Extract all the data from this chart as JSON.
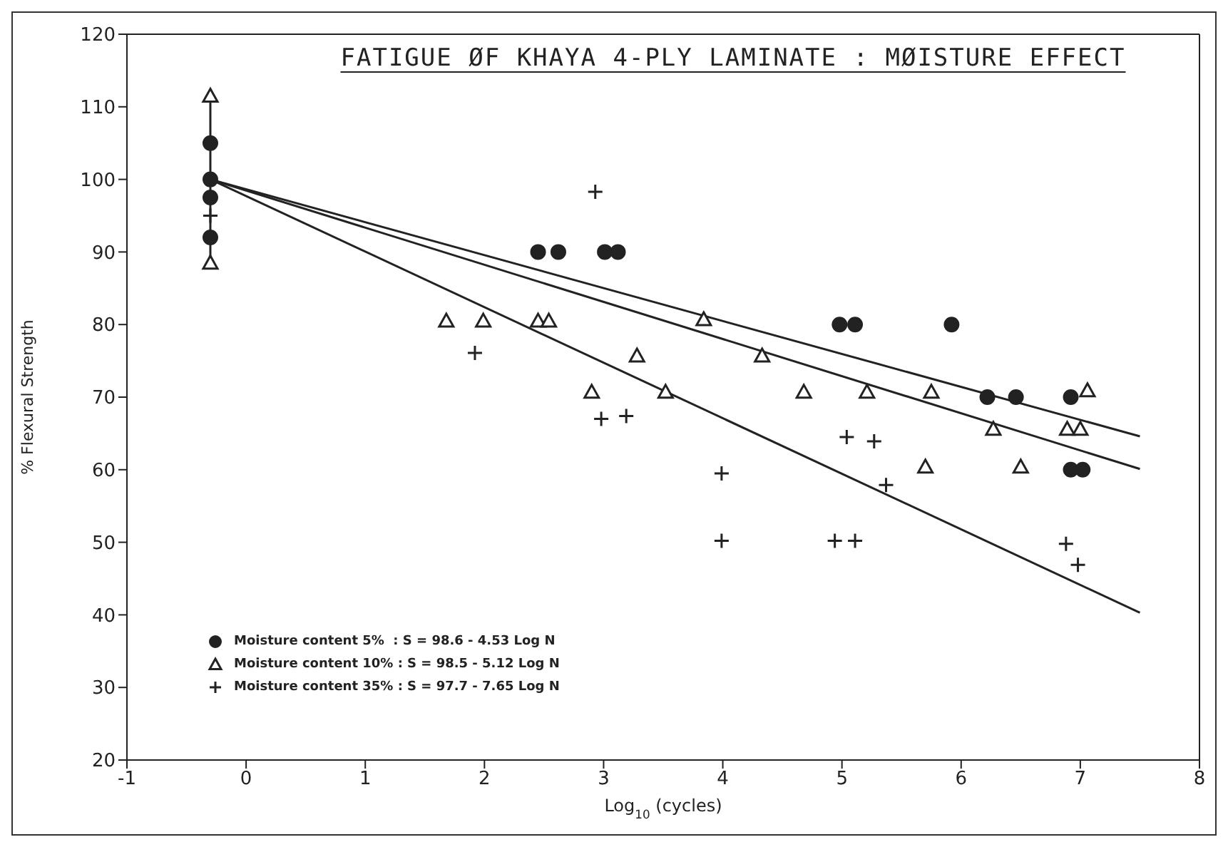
{
  "chart_data": {
    "type": "scatter",
    "title": "FATIGUE ØF KHAYA 4-PLY LAMINATE : MØISTURE EFFECT",
    "xlabel": "Log$_{10}$ (cycles)",
    "ylabel": "% Flexural Strength",
    "xlim": [
      -1,
      8
    ],
    "xticks": [
      -1,
      0,
      1,
      2,
      3,
      4,
      5,
      6,
      7,
      8
    ],
    "ylim": [
      20,
      120
    ],
    "yticks": [
      20,
      30,
      40,
      50,
      60,
      70,
      80,
      90,
      100,
      110,
      120
    ],
    "grid": false,
    "legend": "bottom left",
    "series": [
      {
        "name": "Moisture content 5%  : S = 98.6 - 4.53 Log N",
        "color": "#222222",
        "marker": "circle",
        "x": [
          -0.3,
          -0.3,
          -0.3,
          -0.3,
          2.45,
          2.62,
          3.01,
          3.12,
          4.98,
          5.11,
          5.92,
          6.22,
          6.46,
          6.92,
          6.92,
          7.02
        ],
        "values": [
          100,
          105,
          97.5,
          92,
          90,
          90,
          90,
          90,
          80,
          80,
          80,
          70,
          70,
          70,
          60,
          60
        ]
      },
      {
        "name": "Moisture content 10% : S = 98.5 - 5.12 Log N",
        "color": "#222222",
        "marker": "triangle",
        "x": [
          -0.3,
          -0.3,
          1.68,
          1.99,
          2.45,
          2.54,
          2.9,
          3.28,
          3.52,
          3.84,
          4.33,
          4.68,
          5.21,
          5.7,
          5.75,
          6.27,
          6.5,
          6.89,
          7.0,
          7.06
        ],
        "values": [
          111.5,
          88.5,
          80.5,
          80.5,
          80.5,
          80.5,
          70.7,
          75.7,
          70.7,
          80.7,
          75.7,
          70.7,
          70.7,
          60.4,
          70.7,
          65.6,
          60.4,
          65.6,
          65.6,
          70.9
        ]
      },
      {
        "name": "Moisture content 35% : S = 97.7 - 7.65 Log N",
        "color": "#222222",
        "marker": "cross",
        "x": [
          -0.3,
          1.92,
          2.93,
          2.98,
          3.19,
          3.99,
          3.99,
          4.94,
          5.04,
          5.11,
          5.27,
          5.37,
          6.88,
          6.98
        ],
        "values": [
          95,
          76.1,
          98.3,
          67,
          67.4,
          59.5,
          50.2,
          50.2,
          64.5,
          50.2,
          63.9,
          57.9,
          49.8,
          46.9
        ]
      },
      {
        "type": "line",
        "color": "#222222",
        "x": [
          -0.3,
          7.5
        ],
        "values": [
          100,
          64.6
        ]
      },
      {
        "type": "line",
        "color": "#222222",
        "x": [
          -0.3,
          7.5
        ],
        "values": [
          100,
          60.1
        ]
      },
      {
        "type": "line",
        "color": "#222222",
        "x": [
          -0.3,
          7.5
        ],
        "values": [
          100,
          40.3
        ]
      },
      {
        "type": "line",
        "color": "#222222",
        "x": [
          -0.3,
          -0.3
        ],
        "values": [
          88.5,
          111.5
        ]
      }
    ]
  }
}
